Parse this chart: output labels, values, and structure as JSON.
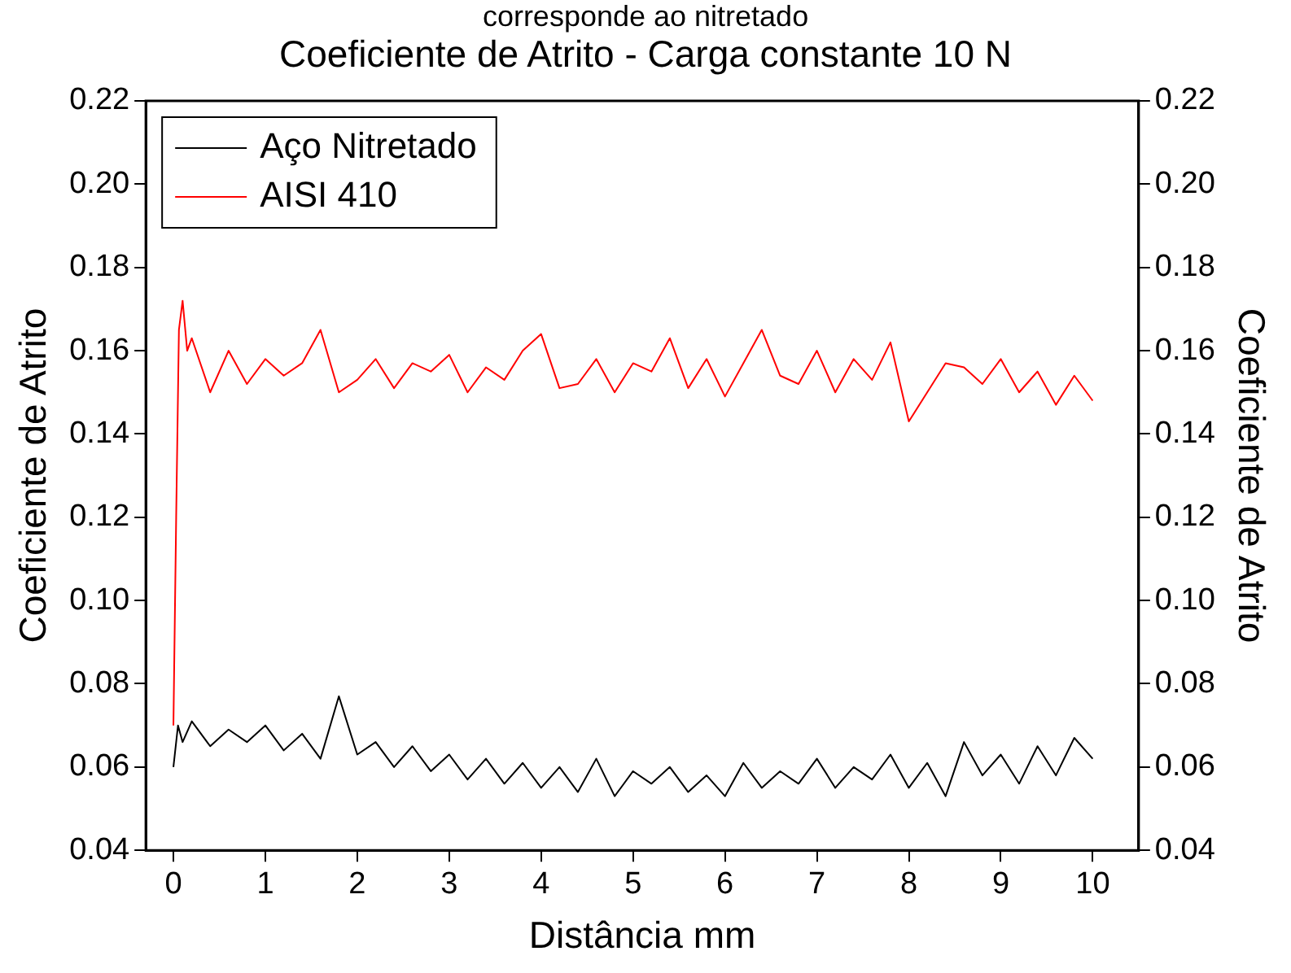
{
  "chart_data": {
    "type": "line",
    "title": "Coeficiente de Atrito - Carga constante 10 N",
    "annotations": [
      "corresponde ao nitretado"
    ],
    "xlabel": "Distância mm",
    "ylabel": "Coeficiente de Atrito",
    "y2label": "Coeficiente de Atrito",
    "xlim": [
      -0.3,
      10.5
    ],
    "xticks": [
      0,
      1,
      2,
      3,
      4,
      5,
      6,
      7,
      8,
      9,
      10
    ],
    "ylim": [
      0.04,
      0.22
    ],
    "yticks": [
      0.04,
      0.06,
      0.08,
      {
        "value": 0.1,
        "label": "0.10"
      },
      0.12,
      0.14,
      0.16,
      0.18,
      {
        "value": 0.2,
        "label": "0.20"
      },
      0.22
    ],
    "y2lim": [
      0.04,
      0.22
    ],
    "y2ticks": [
      0.04,
      0.06,
      0.08,
      {
        "value": 0.1,
        "label": "0.10"
      },
      0.12,
      0.14,
      0.16,
      0.18,
      {
        "value": 0.2,
        "label": "0.20"
      },
      0.22
    ],
    "grid": false,
    "legend": "top left",
    "marker": "none",
    "line_style": "solid",
    "series": [
      {
        "name": "Aço Nitretado",
        "color": "#000000",
        "x": [
          0,
          0.05,
          0.1,
          0.2,
          0.4,
          0.6,
          0.8,
          1,
          1.2,
          1.4,
          1.6,
          1.8,
          2,
          2.2,
          2.4,
          2.6,
          2.8,
          3,
          3.2,
          3.4,
          3.6,
          3.8,
          4,
          4.2,
          4.4,
          4.6,
          4.8,
          5,
          5.2,
          5.4,
          5.6,
          5.8,
          6,
          6.2,
          6.4,
          6.6,
          6.8,
          7,
          7.2,
          7.4,
          7.6,
          7.8,
          8,
          8.2,
          8.4,
          8.6,
          8.8,
          9,
          9.2,
          9.4,
          9.6,
          9.8,
          10
        ],
        "values": [
          0.06,
          0.07,
          0.066,
          0.071,
          0.065,
          0.069,
          0.066,
          0.07,
          0.064,
          0.068,
          0.062,
          0.077,
          0.063,
          0.066,
          0.06,
          0.065,
          0.059,
          0.063,
          0.057,
          0.062,
          0.056,
          0.061,
          0.055,
          0.06,
          0.054,
          0.062,
          0.053,
          0.059,
          0.056,
          0.06,
          0.054,
          0.058,
          0.053,
          0.061,
          0.055,
          0.059,
          0.056,
          0.062,
          0.055,
          0.06,
          0.057,
          0.063,
          0.055,
          0.061,
          0.053,
          0.066,
          0.058,
          0.063,
          0.056,
          0.065,
          0.058,
          0.067,
          0.062
        ]
      },
      {
        "name": "AISI 410",
        "color": "#ff0000",
        "x": [
          0,
          0.03,
          0.06,
          0.1,
          0.15,
          0.2,
          0.4,
          0.6,
          0.8,
          1,
          1.2,
          1.4,
          1.6,
          1.8,
          2,
          2.2,
          2.4,
          2.6,
          2.8,
          3,
          3.2,
          3.4,
          3.6,
          3.8,
          4,
          4.2,
          4.4,
          4.6,
          4.8,
          5,
          5.2,
          5.4,
          5.6,
          5.8,
          6,
          6.2,
          6.4,
          6.6,
          6.8,
          7,
          7.2,
          7.4,
          7.6,
          7.8,
          8,
          8.2,
          8.4,
          8.6,
          8.8,
          9,
          9.2,
          9.4,
          9.6,
          9.8,
          10
        ],
        "values": [
          0.07,
          0.12,
          0.165,
          0.172,
          0.16,
          0.163,
          0.15,
          0.16,
          0.152,
          0.158,
          0.154,
          0.157,
          0.165,
          0.15,
          0.153,
          0.158,
          0.151,
          0.157,
          0.155,
          0.159,
          0.15,
          0.156,
          0.153,
          0.16,
          0.164,
          0.151,
          0.152,
          0.158,
          0.15,
          0.157,
          0.155,
          0.163,
          0.151,
          0.158,
          0.149,
          0.157,
          0.165,
          0.154,
          0.152,
          0.16,
          0.15,
          0.158,
          0.153,
          0.162,
          0.143,
          0.15,
          0.157,
          0.156,
          0.152,
          0.158,
          0.15,
          0.155,
          0.147,
          0.154,
          0.148
        ]
      }
    ]
  }
}
